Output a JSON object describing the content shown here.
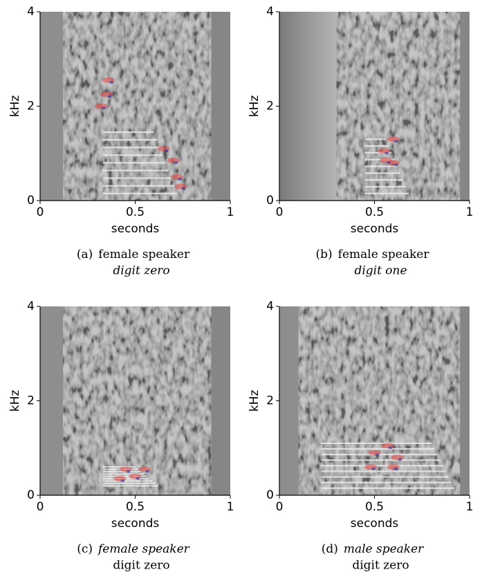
{
  "chart_data": [
    {
      "type": "spectrogram",
      "xlabel": "seconds",
      "ylabel": "kHz",
      "xlim": [
        0,
        1
      ],
      "ylim": [
        0,
        4
      ],
      "xticks": [
        0,
        0.5,
        1
      ],
      "yticks": [
        0,
        2,
        4
      ],
      "caption_label": "(a)",
      "caption_line1": "female speaker",
      "caption_line2": "digit zero",
      "italic_line": 2
    },
    {
      "type": "spectrogram",
      "xlabel": "seconds",
      "ylabel": "kHz",
      "xlim": [
        0,
        1
      ],
      "ylim": [
        0,
        4
      ],
      "xticks": [
        0,
        0.5,
        1
      ],
      "yticks": [
        0,
        2,
        4
      ],
      "caption_label": "(b)",
      "caption_line1": "female speaker",
      "caption_line2": "digit one",
      "italic_line": 2
    },
    {
      "type": "spectrogram",
      "xlabel": "seconds",
      "ylabel": "kHz",
      "xlim": [
        0,
        1
      ],
      "ylim": [
        0,
        4
      ],
      "xticks": [
        0,
        0.5,
        1
      ],
      "yticks": [
        0,
        2,
        4
      ],
      "caption_label": "(c)",
      "caption_line1": "female speaker",
      "caption_line2": "digit zero",
      "italic_line": 1
    },
    {
      "type": "spectrogram",
      "xlabel": "seconds",
      "ylabel": "kHz",
      "xlim": [
        0,
        1
      ],
      "ylim": [
        0,
        4
      ],
      "xticks": [
        0,
        0.5,
        1
      ],
      "yticks": [
        0,
        2,
        4
      ],
      "caption_label": "(d)",
      "caption_line1": "male speaker",
      "caption_line2": "digit zero",
      "italic_line": 1
    }
  ]
}
